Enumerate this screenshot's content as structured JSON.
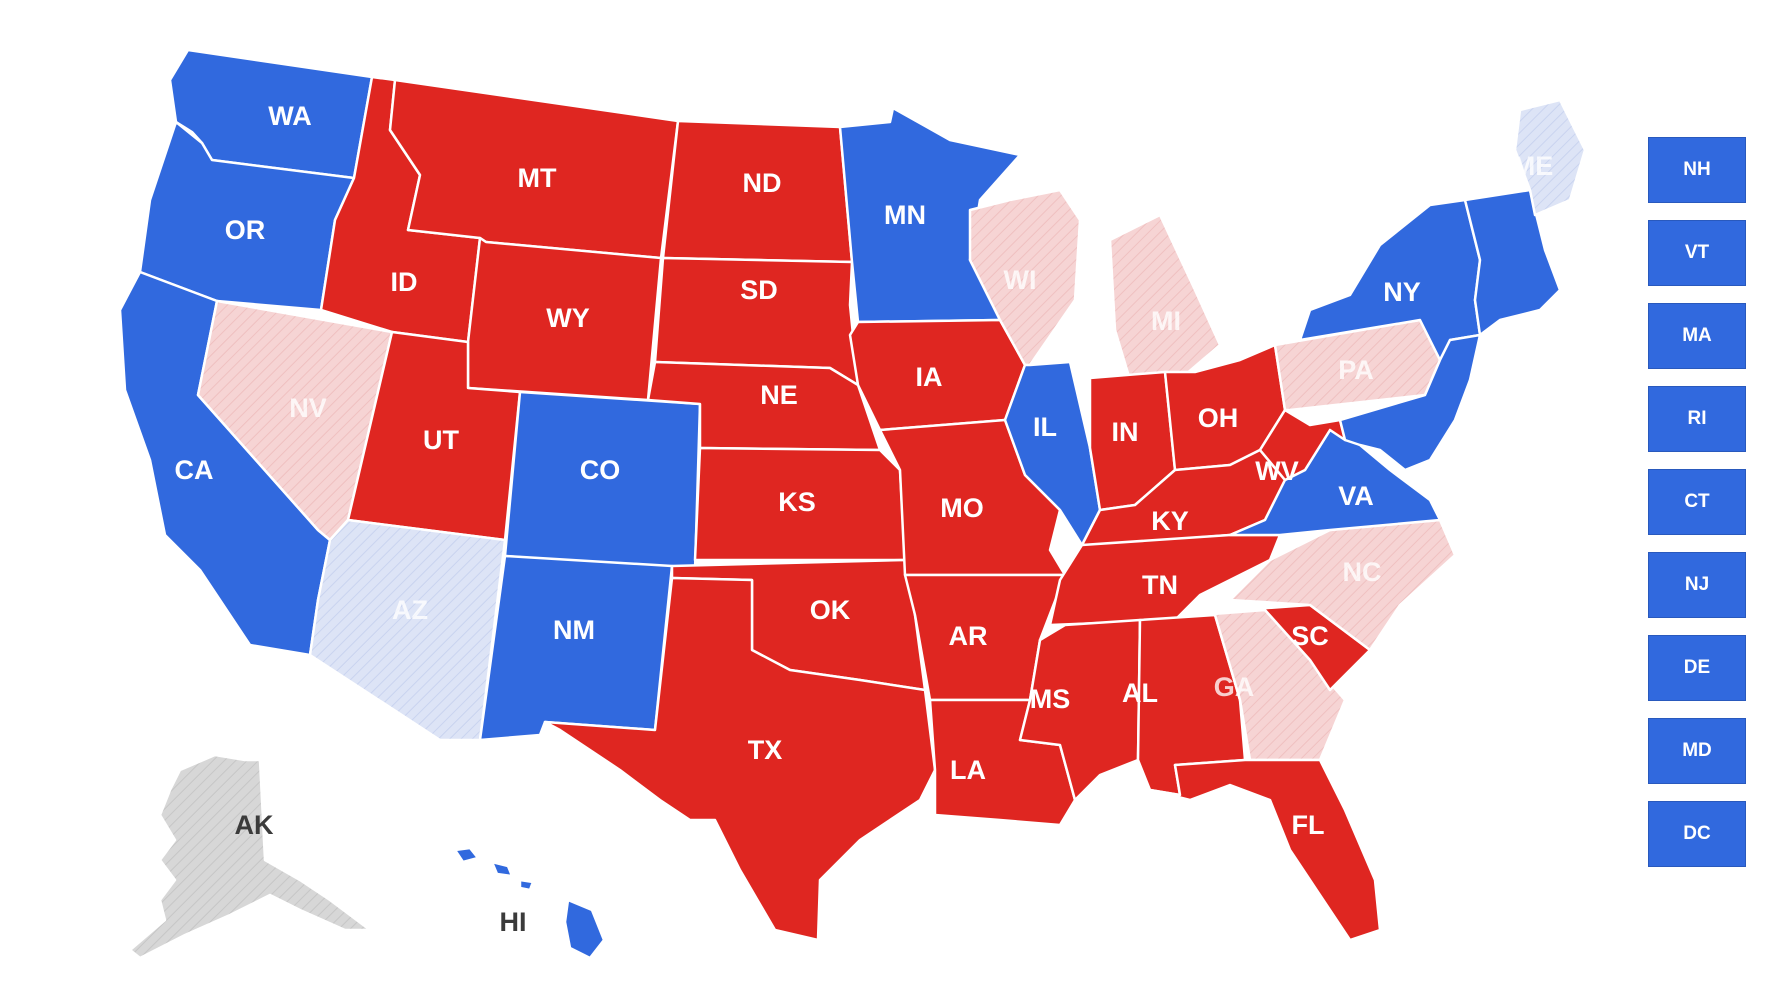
{
  "colors": {
    "blue": "#3169de",
    "red": "#df2621",
    "pink": "#f6d4d4",
    "light_blue": "#dde4f6",
    "gray": "#d7d7d7"
  },
  "states": [
    {
      "id": "WA",
      "label": "WA",
      "status": "blue"
    },
    {
      "id": "OR",
      "label": "OR",
      "status": "blue"
    },
    {
      "id": "CA",
      "label": "CA",
      "status": "blue"
    },
    {
      "id": "ID",
      "label": "ID",
      "status": "red"
    },
    {
      "id": "NV",
      "label": "NV",
      "status": "pink"
    },
    {
      "id": "MT",
      "label": "MT",
      "status": "red"
    },
    {
      "id": "WY",
      "label": "WY",
      "status": "red"
    },
    {
      "id": "UT",
      "label": "UT",
      "status": "red"
    },
    {
      "id": "AZ",
      "label": "AZ",
      "status": "light_blue"
    },
    {
      "id": "CO",
      "label": "CO",
      "status": "blue"
    },
    {
      "id": "NM",
      "label": "NM",
      "status": "blue"
    },
    {
      "id": "ND",
      "label": "ND",
      "status": "red"
    },
    {
      "id": "SD",
      "label": "SD",
      "status": "red"
    },
    {
      "id": "NE",
      "label": "NE",
      "status": "red"
    },
    {
      "id": "KS",
      "label": "KS",
      "status": "red"
    },
    {
      "id": "OK",
      "label": "OK",
      "status": "red"
    },
    {
      "id": "TX",
      "label": "TX",
      "status": "red"
    },
    {
      "id": "MN",
      "label": "MN",
      "status": "blue"
    },
    {
      "id": "IA",
      "label": "IA",
      "status": "red"
    },
    {
      "id": "MO",
      "label": "MO",
      "status": "red"
    },
    {
      "id": "AR",
      "label": "AR",
      "status": "red"
    },
    {
      "id": "LA",
      "label": "LA",
      "status": "red"
    },
    {
      "id": "WI",
      "label": "WI",
      "status": "pink"
    },
    {
      "id": "IL",
      "label": "IL",
      "status": "blue"
    },
    {
      "id": "MI",
      "label": "MI",
      "status": "pink"
    },
    {
      "id": "IN",
      "label": "IN",
      "status": "red"
    },
    {
      "id": "OH",
      "label": "OH",
      "status": "red"
    },
    {
      "id": "KY",
      "label": "KY",
      "status": "red"
    },
    {
      "id": "TN",
      "label": "TN",
      "status": "red"
    },
    {
      "id": "MS",
      "label": "MS",
      "status": "red"
    },
    {
      "id": "AL",
      "label": "AL",
      "status": "red"
    },
    {
      "id": "GA",
      "label": "GA",
      "status": "pink"
    },
    {
      "id": "FL",
      "label": "FL",
      "status": "red"
    },
    {
      "id": "SC",
      "label": "SC",
      "status": "red"
    },
    {
      "id": "NC",
      "label": "NC",
      "status": "pink"
    },
    {
      "id": "VA",
      "label": "VA",
      "status": "blue"
    },
    {
      "id": "WV",
      "label": "WV",
      "status": "red"
    },
    {
      "id": "PA",
      "label": "PA",
      "status": "pink"
    },
    {
      "id": "NY",
      "label": "NY",
      "status": "blue"
    },
    {
      "id": "ME",
      "label": "ME",
      "status": "light_blue"
    },
    {
      "id": "AK",
      "label": "AK",
      "status": "gray"
    },
    {
      "id": "HI",
      "label": "HI",
      "status": "blue"
    }
  ],
  "small_states": [
    {
      "label": "NH",
      "status": "blue"
    },
    {
      "label": "VT",
      "status": "blue"
    },
    {
      "label": "MA",
      "status": "blue"
    },
    {
      "label": "RI",
      "status": "blue"
    },
    {
      "label": "CT",
      "status": "blue"
    },
    {
      "label": "NJ",
      "status": "blue"
    },
    {
      "label": "DE",
      "status": "blue"
    },
    {
      "label": "MD",
      "status": "blue"
    },
    {
      "label": "DC",
      "status": "blue"
    }
  ]
}
